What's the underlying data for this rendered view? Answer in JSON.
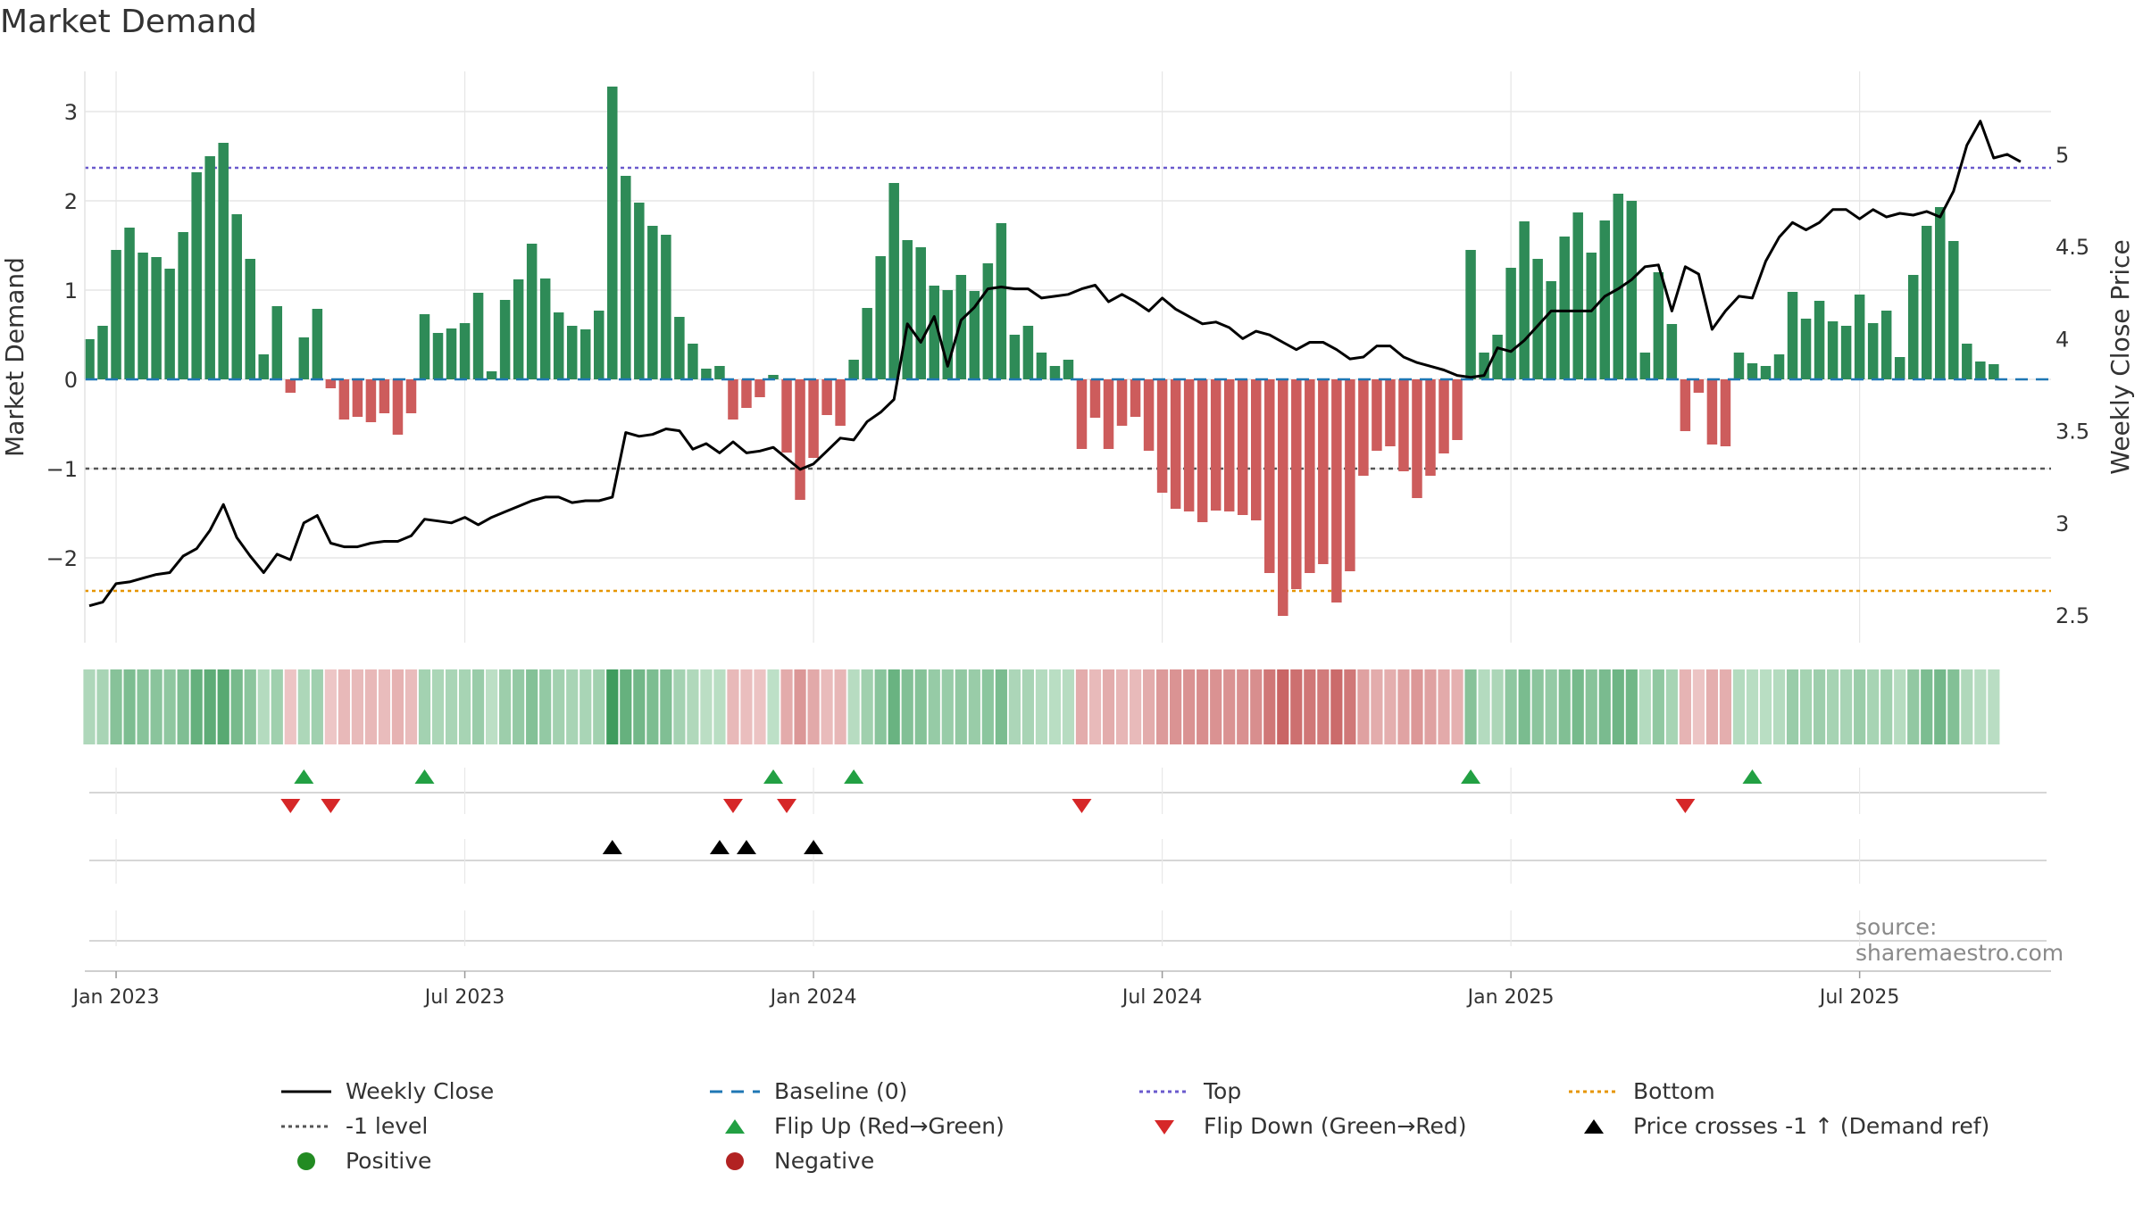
{
  "chart_data": {
    "type": "bar",
    "title": "Market Demand",
    "ylabel_left": "Market Demand",
    "ylabel_right": "Weekly Close Price",
    "left_ylim": [
      -2.95,
      3.45
    ],
    "right_ylim": [
      2.35,
      5.45
    ],
    "left_ticks": [
      3,
      2,
      1,
      0,
      -1,
      -2
    ],
    "left_tick_labels": [
      "3",
      "2",
      "1",
      "0",
      "−1",
      "−2"
    ],
    "right_ticks": [
      5,
      4.5,
      4,
      3.5,
      3,
      2.5
    ],
    "right_tick_labels": [
      "5",
      "4.5",
      "4",
      "3.5",
      "3",
      "2.5"
    ],
    "x_tick_labels": [
      "Jan 2023",
      "Jul 2023",
      "Jan 2024",
      "Jul 2024",
      "Jan 2025",
      "Jul 2025"
    ],
    "x_tick_weeks": [
      2,
      28,
      54,
      80,
      106,
      132
    ],
    "levels": {
      "top": 2.37,
      "bottom": -2.37,
      "minus_one": -1,
      "baseline": 0
    },
    "demand": [
      0.45,
      0.6,
      1.45,
      1.7,
      1.42,
      1.37,
      1.24,
      1.65,
      2.32,
      2.5,
      2.65,
      1.85,
      1.35,
      0.28,
      0.82,
      -0.15,
      0.47,
      0.79,
      -0.1,
      -0.45,
      -0.42,
      -0.48,
      -0.38,
      -0.62,
      -0.38,
      0.73,
      0.52,
      0.57,
      0.63,
      0.97,
      0.09,
      0.89,
      1.12,
      1.52,
      1.13,
      0.75,
      0.6,
      0.56,
      0.77,
      3.28,
      2.28,
      1.98,
      1.72,
      1.62,
      0.7,
      0.4,
      0.12,
      0.15,
      -0.45,
      -0.32,
      -0.2,
      0.05,
      -0.82,
      -1.35,
      -0.88,
      -0.4,
      -0.52,
      0.22,
      0.8,
      1.38,
      2.2,
      1.56,
      1.48,
      1.05,
      1.0,
      1.17,
      0.99,
      1.3,
      1.75,
      0.5,
      0.6,
      0.3,
      0.15,
      0.22,
      -0.78,
      -0.43,
      -0.78,
      -0.52,
      -0.42,
      -0.8,
      -1.27,
      -1.45,
      -1.48,
      -1.6,
      -1.47,
      -1.48,
      -1.52,
      -1.58,
      -2.17,
      -2.65,
      -2.35,
      -2.17,
      -2.07,
      -2.5,
      -2.15,
      -1.08,
      -0.8,
      -0.75,
      -1.03,
      -1.33,
      -1.08,
      -0.83,
      -0.68,
      1.45,
      0.3,
      0.5,
      1.25,
      1.77,
      1.35,
      1.1,
      1.6,
      1.87,
      1.42,
      1.78,
      2.08,
      2.0,
      0.3,
      1.2,
      0.62,
      -0.58,
      -0.15,
      -0.73,
      -0.75,
      0.3,
      0.18,
      0.15,
      0.28,
      0.98,
      0.68,
      0.88,
      0.65,
      0.6,
      0.95,
      0.63,
      0.77,
      0.25,
      1.17,
      1.72,
      1.93,
      1.55,
      0.4,
      0.2,
      0.17
    ],
    "weekly_close": [
      2.55,
      2.57,
      2.67,
      2.68,
      2.7,
      2.72,
      2.73,
      2.82,
      2.86,
      2.96,
      3.1,
      2.92,
      2.82,
      2.73,
      2.83,
      2.8,
      3,
      3.04,
      2.89,
      2.87,
      2.87,
      2.89,
      2.9,
      2.9,
      2.93,
      3.02,
      3.01,
      3.0,
      3.03,
      2.99,
      3.03,
      3.06,
      3.09,
      3.12,
      3.14,
      3.14,
      3.11,
      3.12,
      3.12,
      3.14,
      3.49,
      3.47,
      3.48,
      3.51,
      3.5,
      3.4,
      3.43,
      3.38,
      3.44,
      3.38,
      3.39,
      3.41,
      3.35,
      3.29,
      3.32,
      3.39,
      3.46,
      3.45,
      3.55,
      3.6,
      3.67,
      4.08,
      3.98,
      4.12,
      3.85,
      4.1,
      4.17,
      4.27,
      4.28,
      4.27,
      4.27,
      4.22,
      4.23,
      4.24,
      4.27,
      4.29,
      4.2,
      4.24,
      4.2,
      4.15,
      4.22,
      4.16,
      4.12,
      4.08,
      4.09,
      4.06,
      4.0,
      4.04,
      4.02,
      3.98,
      3.94,
      3.98,
      3.98,
      3.94,
      3.89,
      3.9,
      3.96,
      3.96,
      3.9,
      3.87,
      3.85,
      3.83,
      3.8,
      3.79,
      3.8,
      3.95,
      3.93,
      3.99,
      4.07,
      4.15,
      4.15,
      4.15,
      4.15,
      4.23,
      4.27,
      4.32,
      4.39,
      4.4,
      4.15,
      4.39,
      4.35,
      4.05,
      4.15,
      4.23,
      4.22,
      4.42,
      4.55,
      4.63,
      4.59,
      4.63,
      4.7,
      4.7,
      4.65,
      4.7,
      4.66,
      4.68,
      4.67,
      4.69,
      4.66,
      4.8,
      5.05,
      5.18,
      4.98,
      5.0,
      4.96
    ],
    "flip_up_weeks": [
      16,
      25,
      51,
      57,
      103,
      124
    ],
    "flip_down_weeks": [
      15,
      18,
      48,
      52,
      74,
      119
    ],
    "price_cross_weeks": [
      39,
      47,
      49,
      54
    ],
    "legend": [
      {
        "label": "Weekly Close",
        "symbol": "line",
        "color": "#000000"
      },
      {
        "label": "Baseline (0)",
        "symbol": "dash",
        "color": "#1f77b4"
      },
      {
        "label": "Top",
        "symbol": "dot",
        "color": "#6a5acd"
      },
      {
        "label": "Bottom",
        "symbol": "dot",
        "color": "#e69500"
      },
      {
        "label": "-1 level",
        "symbol": "dot",
        "color": "#555555"
      },
      {
        "label": "Flip Up (Red→Green)",
        "symbol": "tri-up",
        "color": "#22a043"
      },
      {
        "label": "Flip Down (Green→Red)",
        "symbol": "tri-down",
        "color": "#d62728"
      },
      {
        "label": "Price crosses -1 ↑ (Demand ref)",
        "symbol": "tri-up",
        "color": "#000000"
      },
      {
        "label": "Positive",
        "symbol": "circle",
        "color": "#228b22"
      },
      {
        "label": "Negative",
        "symbol": "circle",
        "color": "#b22222"
      }
    ]
  },
  "colors": {
    "positive_bar": "#2e8b57",
    "negative_bar": "#cd5c5c",
    "line": "#000000",
    "top_line": "#6a5acd",
    "bottom_line": "#e69500",
    "minus_one_line": "#555555",
    "baseline": "#1f77b4",
    "grid": "#e6e6e6"
  },
  "source": "source: sharemaestro.com"
}
